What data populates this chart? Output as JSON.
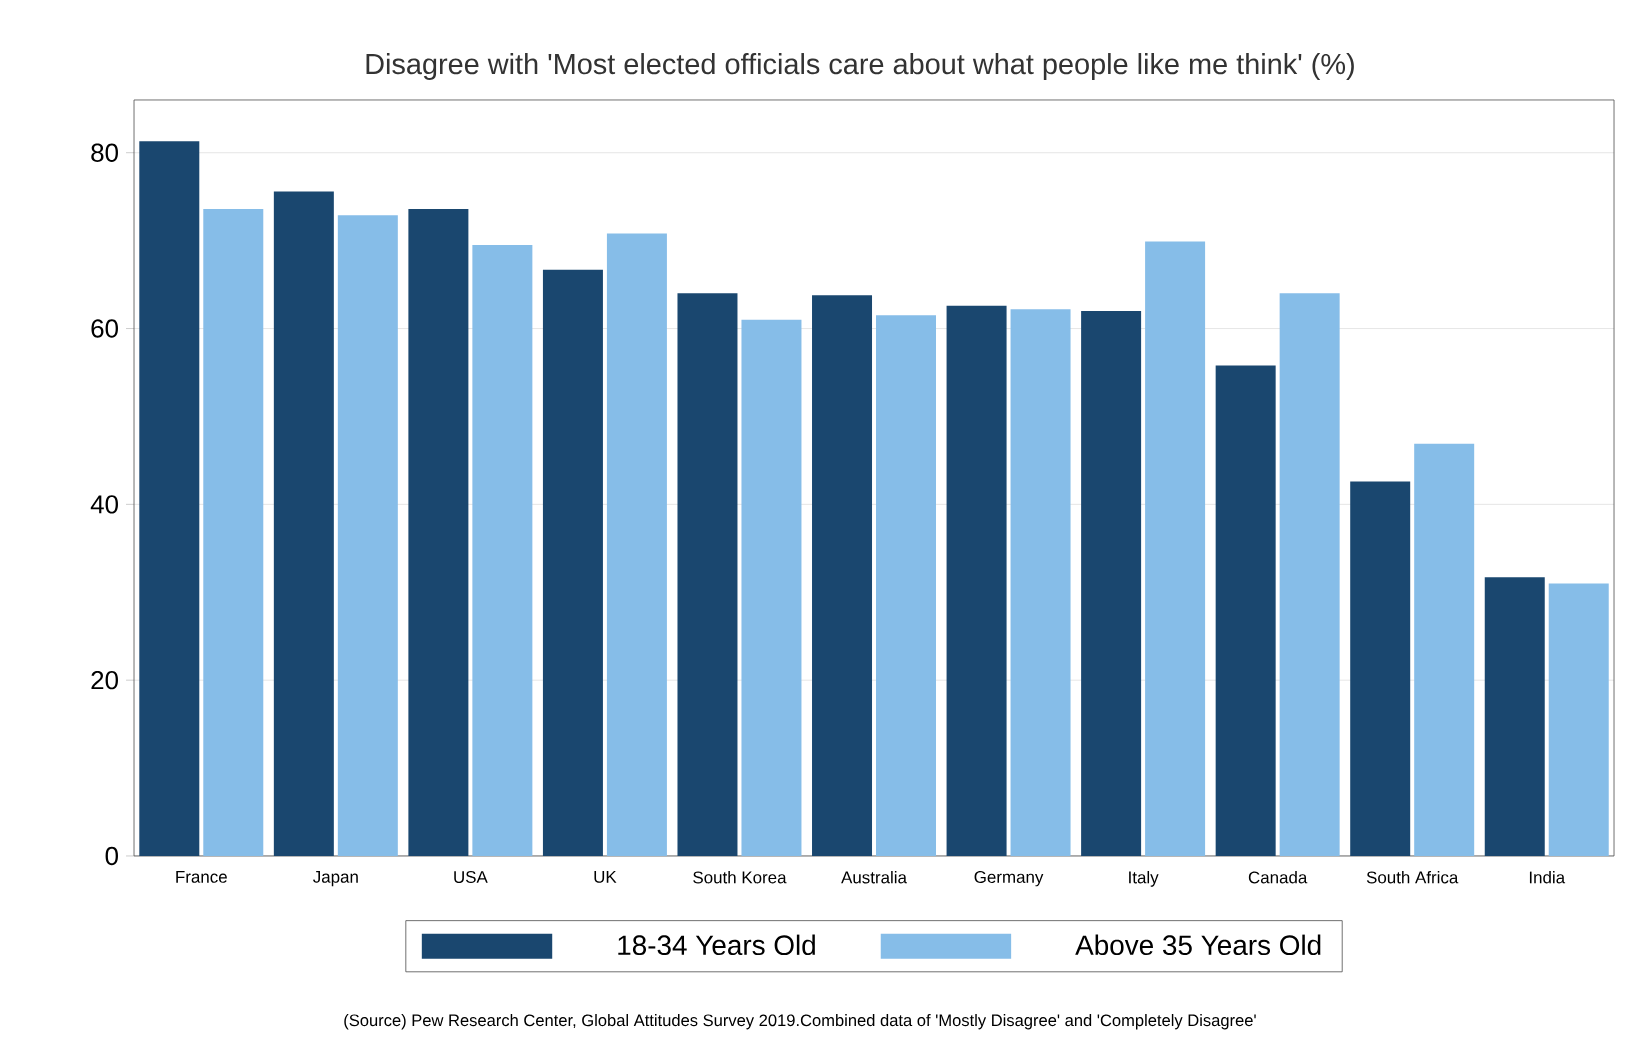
{
  "chart_data": {
    "type": "bar",
    "title": "Disagree with 'Most elected officials care about what people like me think' (%)",
    "categories": [
      "France",
      "Japan",
      "USA",
      "UK",
      "South Korea",
      "Australia",
      "Germany",
      "Italy",
      "Canada",
      "South Africa",
      "India"
    ],
    "series": [
      {
        "name": "18-34 Years Old",
        "color": "#1a476f",
        "values": [
          81.3,
          75.6,
          73.6,
          66.7,
          64.0,
          63.8,
          62.6,
          62.0,
          55.8,
          42.6,
          31.7
        ]
      },
      {
        "name": "Above 35 Years Old",
        "color": "#86bde8",
        "values": [
          73.6,
          72.9,
          69.5,
          70.8,
          61.0,
          61.5,
          62.2,
          69.9,
          64.0,
          46.9,
          31.0
        ]
      }
    ],
    "ylim": [
      0,
      86
    ],
    "yticks": [
      0,
      20,
      40,
      60,
      80
    ],
    "grid": "y",
    "legend": "bottom",
    "annotations": [
      "(Source) Pew Research Center, Global Attitudes Survey 2019.Combined data of 'Mostly Disagree' and 'Completely Disagree'"
    ]
  }
}
